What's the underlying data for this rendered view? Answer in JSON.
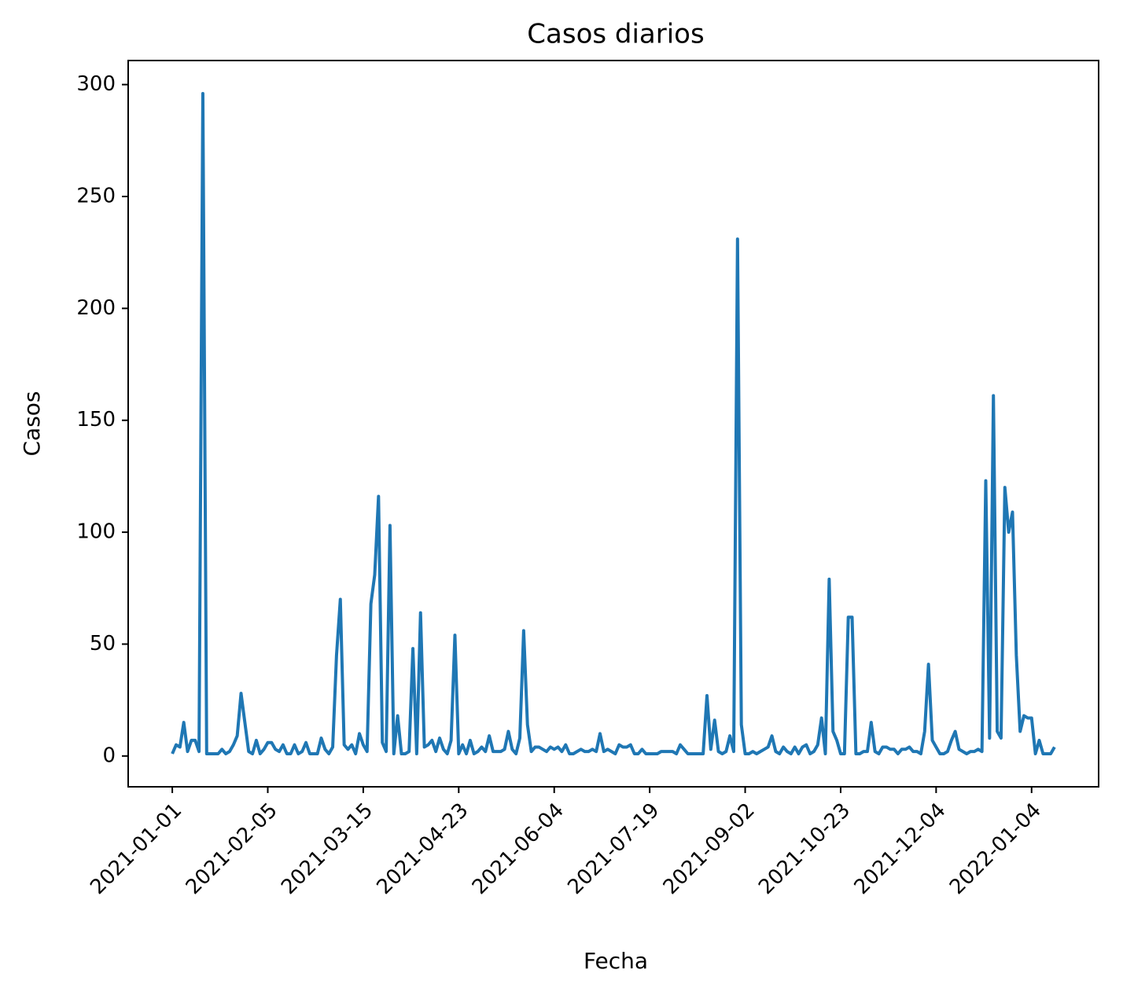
{
  "chart_data": {
    "type": "line",
    "title": "Casos diarios",
    "xlabel": "Fecha",
    "ylabel": "Casos",
    "color": "#1f77b4",
    "categories": [
      "2021-01-01",
      null,
      null,
      null,
      null,
      null,
      null,
      null,
      null,
      null,
      null,
      null,
      null,
      null,
      null,
      null,
      null,
      null,
      null,
      null,
      null,
      null,
      null,
      null,
      null,
      "2021-02-05",
      null,
      null,
      null,
      null,
      null,
      null,
      null,
      null,
      null,
      null,
      null,
      null,
      null,
      null,
      null,
      null,
      null,
      null,
      null,
      null,
      null,
      null,
      null,
      null,
      "2021-03-15",
      null,
      null,
      null,
      null,
      null,
      null,
      null,
      null,
      null,
      null,
      null,
      null,
      null,
      null,
      null,
      null,
      null,
      null,
      null,
      null,
      null,
      null,
      null,
      null,
      "2021-04-23",
      null,
      null,
      null,
      null,
      null,
      null,
      null,
      null,
      null,
      null,
      null,
      null,
      null,
      null,
      null,
      null,
      null,
      null,
      null,
      null,
      null,
      null,
      null,
      null,
      "2021-06-04",
      null,
      null,
      null,
      null,
      null,
      null,
      null,
      null,
      null,
      null,
      null,
      null,
      null,
      null,
      null,
      null,
      null,
      null,
      null,
      null,
      null,
      null,
      null,
      null,
      "2021-07-19",
      null,
      null,
      null,
      null,
      null,
      null,
      null,
      null,
      null,
      null,
      null,
      null,
      null,
      null,
      null,
      null,
      null,
      null,
      null,
      null,
      null,
      null,
      null,
      null,
      "2021-09-02",
      null,
      null,
      null,
      null,
      null,
      null,
      null,
      null,
      null,
      null,
      null,
      null,
      null,
      null,
      null,
      null,
      null,
      null,
      null,
      null,
      null,
      null,
      null,
      null,
      "2021-10-23",
      null,
      null,
      null,
      null,
      null,
      null,
      null,
      null,
      null,
      null,
      null,
      null,
      null,
      null,
      null,
      null,
      null,
      null,
      null,
      null,
      null,
      null,
      null,
      null,
      "2021-12-04",
      null,
      null,
      null,
      null,
      null,
      null,
      null,
      null,
      null,
      null,
      null,
      null,
      null,
      null,
      null,
      null,
      null,
      null,
      null,
      null,
      null,
      null,
      null,
      null,
      "2022-01-04",
      null,
      null,
      null,
      null,
      null,
      null
    ],
    "values": [
      1,
      5,
      4,
      15,
      2,
      7,
      7,
      2,
      296,
      1,
      1,
      1,
      1,
      3,
      1,
      2,
      5,
      9,
      28,
      15,
      2,
      1,
      7,
      1,
      3,
      6,
      6,
      3,
      2,
      5,
      1,
      1,
      5,
      1,
      2,
      6,
      1,
      1,
      1,
      8,
      3,
      1,
      4,
      45,
      70,
      5,
      3,
      5,
      1,
      10,
      5,
      2,
      68,
      81,
      116,
      6,
      2,
      103,
      1,
      18,
      1,
      1,
      2,
      48,
      1,
      64,
      4,
      5,
      7,
      2,
      8,
      3,
      1,
      7,
      54,
      1,
      5,
      1,
      7,
      1,
      2,
      4,
      2,
      9,
      2,
      2,
      2,
      3,
      11,
      3,
      1,
      8,
      56,
      14,
      2,
      4,
      4,
      3,
      2,
      4,
      3,
      4,
      2,
      5,
      1,
      1,
      2,
      3,
      2,
      2,
      3,
      2,
      10,
      2,
      3,
      2,
      1,
      5,
      4,
      4,
      5,
      1,
      1,
      3,
      1,
      1,
      1,
      1,
      2,
      2,
      2,
      2,
      1,
      5,
      3,
      1,
      1,
      1,
      1,
      1,
      27,
      3,
      16,
      2,
      1,
      2,
      9,
      2,
      231,
      14,
      1,
      1,
      2,
      1,
      2,
      3,
      4,
      9,
      2,
      1,
      4,
      2,
      1,
      4,
      1,
      4,
      5,
      1,
      2,
      5,
      17,
      1,
      79,
      11,
      7,
      1,
      1,
      62,
      62,
      1,
      1,
      2,
      2,
      15,
      2,
      1,
      4,
      4,
      3,
      3,
      1,
      3,
      3,
      4,
      2,
      2,
      1,
      11,
      41,
      7,
      4,
      1,
      1,
      2,
      7,
      11,
      3,
      2,
      1,
      2,
      2,
      3,
      2,
      123,
      8,
      161,
      11,
      8,
      120,
      100,
      109,
      45,
      11,
      18,
      17,
      17,
      1,
      7,
      1,
      1,
      1,
      4
    ],
    "ylim": [
      -13.75,
      310.75
    ],
    "yticks": [
      0,
      50,
      100,
      150,
      200,
      250,
      300
    ]
  }
}
